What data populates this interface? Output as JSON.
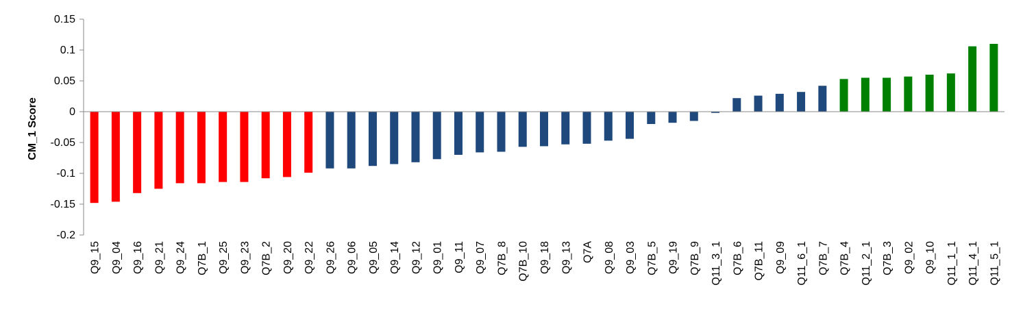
{
  "chart_data": {
    "type": "bar",
    "title": "",
    "xlabel": "",
    "ylabel": "CM_1 Score",
    "ylim": [
      -0.2,
      0.15
    ],
    "yticks": [
      0.15,
      0.1,
      0.05,
      0,
      -0.05,
      -0.1,
      -0.15,
      -0.2
    ],
    "ytick_labels": [
      "0.15",
      "0.1",
      "0.05",
      "0",
      "-0.05",
      "-0.1",
      "-0.15",
      "-0.2"
    ],
    "grid": false,
    "colors": {
      "negative_group": "#ff0000",
      "middle_group": "#1f497d",
      "positive_group": "#008000",
      "axis": "#888888"
    },
    "categories": [
      "Q9_15",
      "Q9_04",
      "Q9_16",
      "Q9_21",
      "Q9_24",
      "Q7B_1",
      "Q9_25",
      "Q9_23",
      "Q7B_2",
      "Q9_20",
      "Q9_22",
      "Q9_26",
      "Q9_06",
      "Q9_05",
      "Q9_14",
      "Q9_12",
      "Q9_01",
      "Q9_11",
      "Q9_07",
      "Q7B_8",
      "Q7B_10",
      "Q9_18",
      "Q9_13",
      "Q7A",
      "Q9_08",
      "Q9_03",
      "Q7B_5",
      "Q9_19",
      "Q7B_9",
      "Q11_3_1",
      "Q7B_6",
      "Q7B_11",
      "Q9_09",
      "Q11_6_1",
      "Q7B_7",
      "Q7B_4",
      "Q11_2_1",
      "Q7B_3",
      "Q9_02",
      "Q9_10",
      "Q11_1_1",
      "Q11_4_1",
      "Q11_5_1"
    ],
    "values": [
      -0.148,
      -0.146,
      -0.132,
      -0.125,
      -0.116,
      -0.116,
      -0.114,
      -0.114,
      -0.108,
      -0.106,
      -0.099,
      -0.092,
      -0.092,
      -0.088,
      -0.085,
      -0.082,
      -0.077,
      -0.07,
      -0.066,
      -0.065,
      -0.057,
      -0.056,
      -0.053,
      -0.052,
      -0.047,
      -0.044,
      -0.02,
      -0.018,
      -0.015,
      -0.002,
      0.022,
      0.026,
      0.029,
      0.032,
      0.042,
      0.053,
      0.055,
      0.055,
      0.057,
      0.06,
      0.062,
      0.106,
      0.11
    ],
    "groups": [
      "negative_group",
      "negative_group",
      "negative_group",
      "negative_group",
      "negative_group",
      "negative_group",
      "negative_group",
      "negative_group",
      "negative_group",
      "negative_group",
      "negative_group",
      "middle_group",
      "middle_group",
      "middle_group",
      "middle_group",
      "middle_group",
      "middle_group",
      "middle_group",
      "middle_group",
      "middle_group",
      "middle_group",
      "middle_group",
      "middle_group",
      "middle_group",
      "middle_group",
      "middle_group",
      "middle_group",
      "middle_group",
      "middle_group",
      "middle_group",
      "middle_group",
      "middle_group",
      "middle_group",
      "middle_group",
      "middle_group",
      "positive_group",
      "positive_group",
      "positive_group",
      "positive_group",
      "positive_group",
      "positive_group",
      "positive_group",
      "positive_group"
    ]
  }
}
